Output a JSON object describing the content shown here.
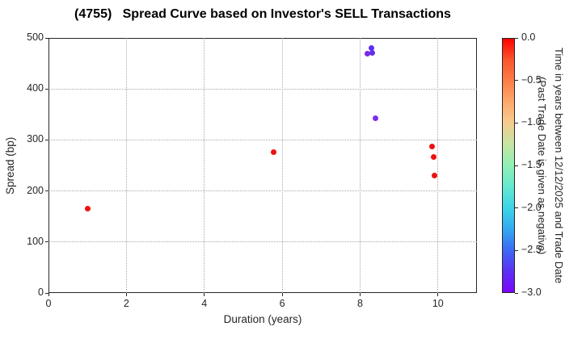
{
  "chart_data": {
    "type": "scatter",
    "title": "(4755)   Spread Curve based on Investor's SELL Transactions",
    "xlabel": "Duration (years)",
    "ylabel": "Spread (bp)",
    "xlim": [
      0,
      11
    ],
    "ylim": [
      0,
      500
    ],
    "xticks": [
      0,
      2,
      4,
      6,
      8,
      10
    ],
    "yticks": [
      0,
      100,
      200,
      300,
      400,
      500
    ],
    "grid": true,
    "grid_style": "dotted",
    "legend_position": "none",
    "points": [
      {
        "x": 1.0,
        "y": 165,
        "time_years_est": 0.0,
        "color": "#ee1111"
      },
      {
        "x": 5.78,
        "y": 276,
        "time_years_est": 0.0,
        "color": "#ee1111"
      },
      {
        "x": 8.19,
        "y": 469,
        "time_years_est": -2.9,
        "color": "#7e28e8"
      },
      {
        "x": 8.29,
        "y": 480,
        "time_years_est": -2.75,
        "color": "#5b30f2"
      },
      {
        "x": 8.31,
        "y": 471,
        "time_years_est": -2.8,
        "color": "#6130ee"
      },
      {
        "x": 8.39,
        "y": 343,
        "time_years_est": -2.85,
        "color": "#7d2cee"
      },
      {
        "x": 9.84,
        "y": 287,
        "time_years_est": 0.0,
        "color": "#ee1111"
      },
      {
        "x": 9.88,
        "y": 267,
        "time_years_est": 0.0,
        "color": "#ee1111"
      },
      {
        "x": 9.92,
        "y": 230,
        "time_years_est": 0.0,
        "color": "#ee1111"
      }
    ],
    "colorbar": {
      "label": "Time in years between 12/12/2025 and Trade Date\n(Past Trade Date is given as negative)",
      "tick_labels": [
        "0.0",
        "−0.5",
        "−1.0",
        "−1.5",
        "−2.0",
        "−2.5",
        "−3.0"
      ],
      "vmax": 0.0,
      "vmin": -3.0,
      "colormap": "rainbow",
      "stops": [
        [
          "0%",
          "#ff0000"
        ],
        [
          "8%",
          "#fa5329"
        ],
        [
          "17%",
          "#fc8049"
        ],
        [
          "25%",
          "#fcaa6b"
        ],
        [
          "33%",
          "#f6cb8e"
        ],
        [
          "42%",
          "#c3e6a4"
        ],
        [
          "50%",
          "#90f0b4"
        ],
        [
          "58%",
          "#66e9cf"
        ],
        [
          "67%",
          "#3bd3e9"
        ],
        [
          "75%",
          "#33aaf0"
        ],
        [
          "83%",
          "#3b6cf5"
        ],
        [
          "92%",
          "#5c2ff3"
        ],
        [
          "100%",
          "#7c05fd"
        ]
      ]
    }
  }
}
